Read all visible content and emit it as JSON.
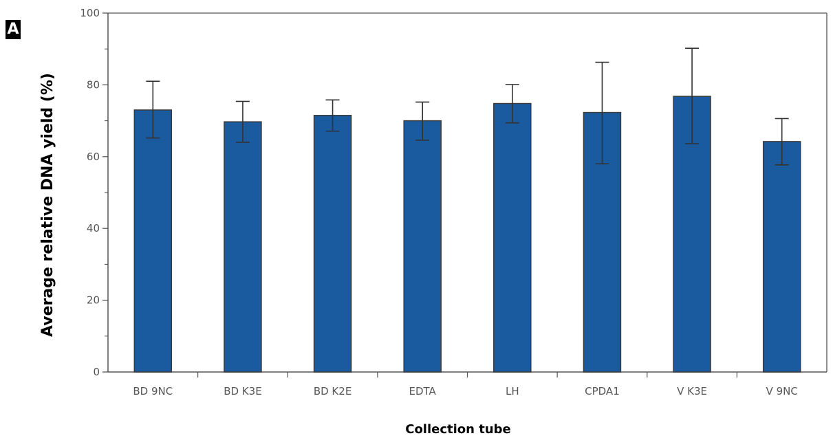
{
  "panel_label": "A",
  "colors": {
    "bar_fill": "#1a5a9e",
    "bar_stroke": "#3a3a3a",
    "axis": "#555555",
    "error_bar": "#333333"
  },
  "chart_data": {
    "type": "bar",
    "title": "",
    "xlabel": "Collection tube",
    "ylabel": "Average relative DNA yield (%)",
    "ylim": [
      0,
      100
    ],
    "yticks": [
      0,
      20,
      40,
      60,
      80,
      100
    ],
    "grid": false,
    "legend": "none",
    "categories": [
      "BD 9NC",
      "BD K3E",
      "BD K2E",
      "EDTA",
      "LH",
      "CPDA1",
      "V K3E",
      "V 9NC"
    ],
    "values": [
      73,
      69.7,
      71.5,
      70,
      74.8,
      72.3,
      76.8,
      64.2
    ],
    "error_upper": [
      81,
      75.4,
      75.8,
      75.2,
      80.1,
      86.3,
      90.2,
      70.6
    ],
    "error_lower": [
      65.2,
      64,
      67.1,
      64.6,
      69.4,
      58,
      63.6,
      57.7
    ]
  }
}
